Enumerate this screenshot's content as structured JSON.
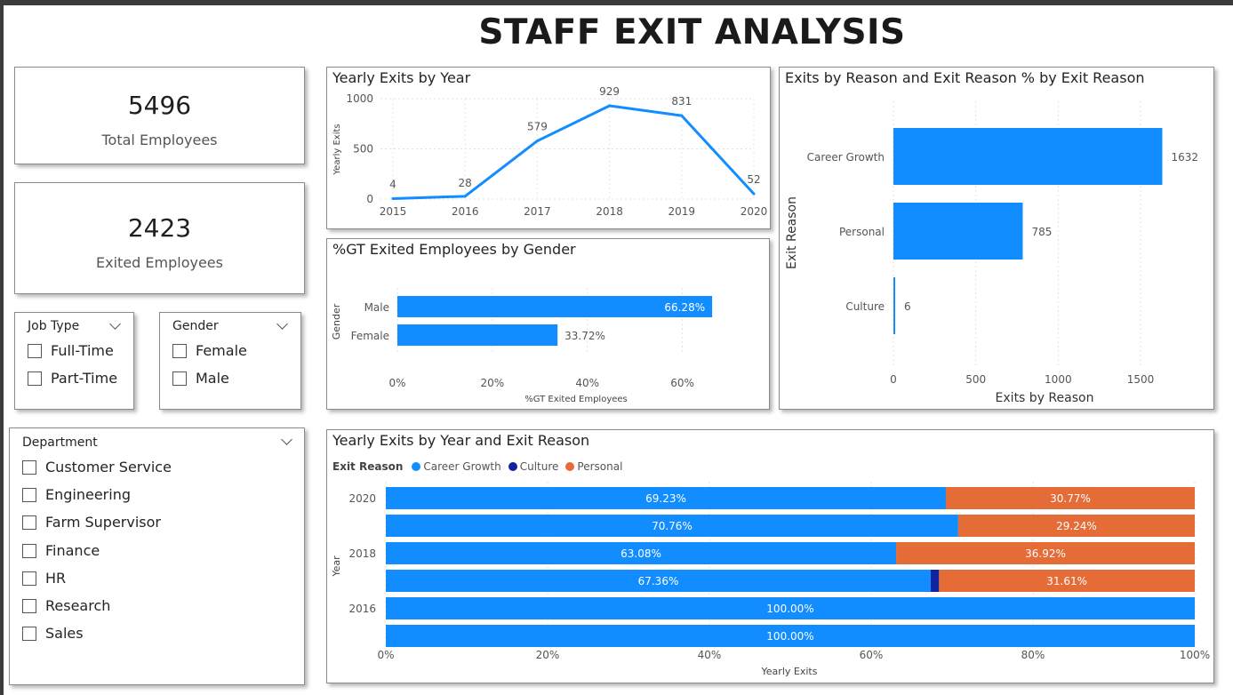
{
  "page_title": "STAFF EXIT ANALYSIS",
  "colors": {
    "career_growth": "#118dff",
    "culture": "#12239e",
    "personal": "#e66c37"
  },
  "kpis": [
    {
      "value": "5496",
      "label": "Total Employees"
    },
    {
      "value": "2423",
      "label": "Exited Employees"
    }
  ],
  "slicers": {
    "job_type": {
      "title": "Job Type",
      "options": [
        "Full-Time",
        "Part-Time"
      ]
    },
    "gender": {
      "title": "Gender",
      "options": [
        "Female",
        "Male"
      ]
    },
    "department": {
      "title": "Department",
      "options": [
        "Customer Service",
        "Engineering",
        "Farm Supervisor",
        "Finance",
        "HR",
        "Research",
        "Sales"
      ]
    }
  },
  "chart_data": [
    {
      "id": "yearly_exits",
      "type": "line",
      "title": "Yearly Exits by Year",
      "xlabel": "",
      "ylabel": "Yearly Exits",
      "x": [
        "2015",
        "2016",
        "2017",
        "2018",
        "2019",
        "2020"
      ],
      "values": [
        4,
        28,
        579,
        929,
        831,
        52
      ],
      "data_labels": [
        "4",
        "28",
        "579",
        "929",
        "831",
        "52"
      ],
      "ylim": [
        0,
        1000
      ],
      "yticks": [
        "0",
        "500",
        "1000"
      ],
      "grid": true
    },
    {
      "id": "gender",
      "type": "bar",
      "orientation": "horizontal",
      "title": "%GT Exited Employees by Gender",
      "xlabel": "%GT Exited Employees",
      "ylabel": "Gender",
      "categories": [
        "Male",
        "Female"
      ],
      "values": [
        66.28,
        33.72
      ],
      "data_labels": [
        "66.28%",
        "33.72%"
      ],
      "xlim": [
        0,
        70
      ],
      "xticks": [
        "0%",
        "20%",
        "40%",
        "60%"
      ],
      "grid": true
    },
    {
      "id": "reason",
      "type": "bar",
      "orientation": "horizontal",
      "title": "Exits by Reason and Exit Reason % by Exit Reason",
      "xlabel": "Exits by Reason",
      "ylabel": "Exit Reason",
      "categories": [
        "Career Growth",
        "Personal",
        "Culture"
      ],
      "values": [
        1632,
        785,
        6
      ],
      "data_labels": [
        "1632",
        "785",
        "6"
      ],
      "xlim": [
        0,
        1700
      ],
      "xticks": [
        "0",
        "500",
        "1000",
        "1500"
      ],
      "grid": true
    },
    {
      "id": "year_reason",
      "type": "bar",
      "orientation": "horizontal",
      "stacked": "percent",
      "title": "Yearly Exits by Year and Exit Reason",
      "xlabel": "Yearly Exits",
      "ylabel": "Year",
      "legend_title": "Exit Reason",
      "legend": [
        "Career Growth",
        "Culture",
        "Personal"
      ],
      "categories": [
        "2020",
        "2019",
        "2018",
        "2017",
        "2016",
        "2015"
      ],
      "category_labels": [
        "2020",
        "",
        "2018",
        "",
        "2016",
        ""
      ],
      "series": [
        {
          "name": "Career Growth",
          "values": [
            69.23,
            70.76,
            63.08,
            67.36,
            100,
            100
          ],
          "labels": [
            "69.23%",
            "70.76%",
            "63.08%",
            "67.36%",
            "100.00%",
            "100.00%"
          ]
        },
        {
          "name": "Culture",
          "values": [
            0,
            0,
            0,
            1.03,
            0,
            0
          ],
          "labels": [
            "",
            "",
            "",
            "",
            "",
            ""
          ]
        },
        {
          "name": "Personal",
          "values": [
            30.77,
            29.24,
            36.92,
            31.61,
            0,
            0
          ],
          "labels": [
            "30.77%",
            "29.24%",
            "36.92%",
            "31.61%",
            "",
            ""
          ]
        }
      ],
      "xlim": [
        0,
        100
      ],
      "xticks": [
        "0%",
        "20%",
        "40%",
        "60%",
        "80%",
        "100%"
      ],
      "grid": true
    }
  ]
}
